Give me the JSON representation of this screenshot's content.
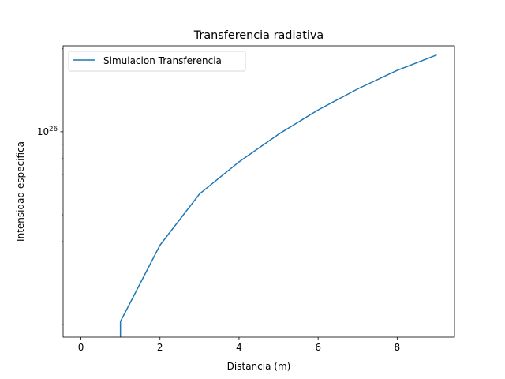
{
  "chart_data": {
    "type": "line",
    "title": "Transferencia radiativa",
    "xlabel": "Distancia (m)",
    "ylabel": "Intensidad especifica",
    "yscale": "log",
    "grid": false,
    "legend_placement": "top-left",
    "xlim": [
      -0.45,
      9.45
    ],
    "ylim": [
      1.8e+25,
      2.05e+26
    ],
    "x_ticks": [
      0,
      2,
      4,
      6,
      8
    ],
    "x_tick_labels": [
      "0",
      "2",
      "4",
      "6",
      "8"
    ],
    "y_major_ticks": [
      1e+26
    ],
    "y_major_tick_labels": [
      {
        "base": "10",
        "exp": "26"
      }
    ],
    "y_minor_ticks": [
      2e+25,
      3e+25,
      4e+25,
      5e+25,
      6e+25,
      7e+25,
      8e+25,
      9e+25,
      2e+26
    ],
    "series": [
      {
        "name": "Simulacion Transferencia",
        "color": "#1f77b4",
        "x": [
          1,
          1,
          2,
          3,
          4,
          5,
          6,
          7,
          8,
          9
        ],
        "y": [
          1.8e+25,
          2.05e+25,
          3.88e+25,
          5.95e+25,
          7.78e+25,
          9.8e+25,
          1.2e+26,
          1.43e+26,
          1.67e+26,
          1.9e+26
        ]
      }
    ]
  }
}
